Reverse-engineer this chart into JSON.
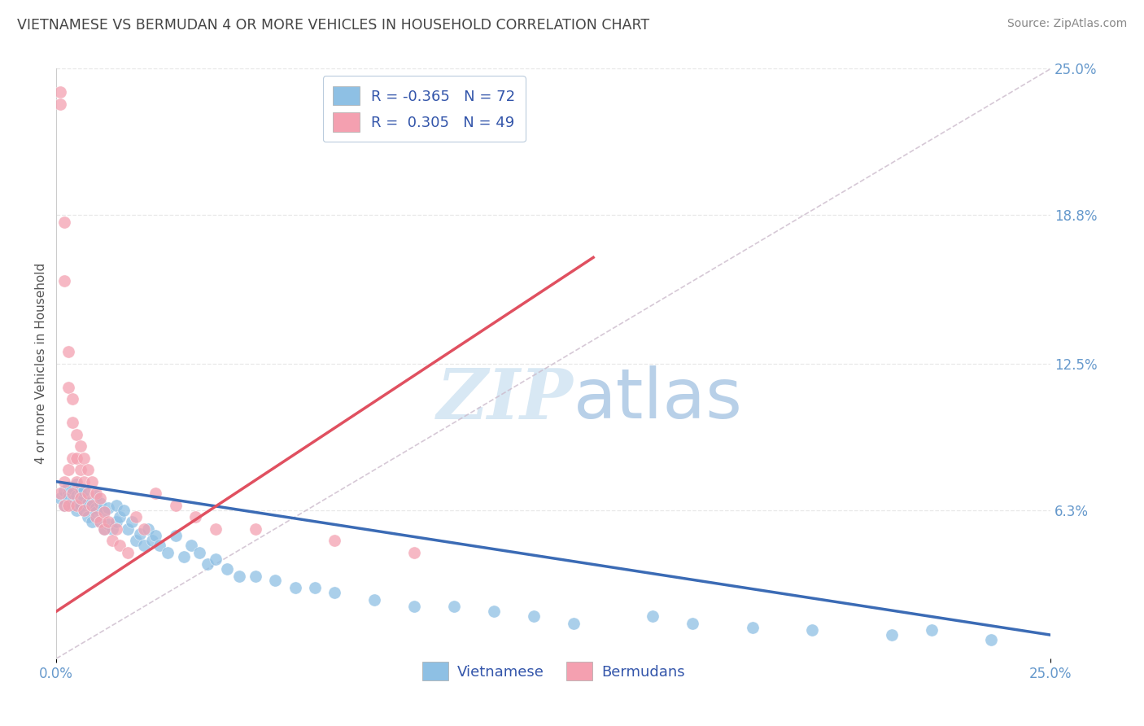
{
  "title": "VIETNAMESE VS BERMUDAN 4 OR MORE VEHICLES IN HOUSEHOLD CORRELATION CHART",
  "source": "Source: ZipAtlas.com",
  "ylabel": "4 or more Vehicles in Household",
  "xlim": [
    0.0,
    0.25
  ],
  "ylim": [
    0.0,
    0.25
  ],
  "xtick_positions": [
    0.0,
    0.25
  ],
  "xtick_labels": [
    "0.0%",
    "25.0%"
  ],
  "ytick_right_labels": [
    "6.3%",
    "12.5%",
    "18.8%",
    "25.0%"
  ],
  "ytick_right_values": [
    0.063,
    0.125,
    0.188,
    0.25
  ],
  "legend_R1": "-0.365",
  "legend_N1": "72",
  "legend_R2": "0.305",
  "legend_N2": "49",
  "blue_color": "#8EC0E4",
  "pink_color": "#F4A0B0",
  "blue_line_color": "#3B6BB5",
  "pink_line_color": "#E05060",
  "gray_line_color": "#CCBBCC",
  "title_color": "#444444",
  "source_color": "#888888",
  "axis_label_color": "#555555",
  "tick_color": "#6699CC",
  "grid_color": "#E8E8E8",
  "watermark_color": "#D8E8F4",
  "blue_scatter_x": [
    0.001,
    0.002,
    0.002,
    0.003,
    0.003,
    0.003,
    0.004,
    0.004,
    0.004,
    0.005,
    0.005,
    0.005,
    0.006,
    0.006,
    0.006,
    0.007,
    0.007,
    0.007,
    0.008,
    0.008,
    0.009,
    0.009,
    0.01,
    0.01,
    0.01,
    0.011,
    0.011,
    0.012,
    0.012,
    0.013,
    0.013,
    0.014,
    0.015,
    0.015,
    0.016,
    0.017,
    0.018,
    0.019,
    0.02,
    0.021,
    0.022,
    0.023,
    0.024,
    0.025,
    0.026,
    0.028,
    0.03,
    0.032,
    0.034,
    0.036,
    0.038,
    0.04,
    0.043,
    0.046,
    0.05,
    0.055,
    0.06,
    0.065,
    0.07,
    0.08,
    0.09,
    0.1,
    0.11,
    0.12,
    0.13,
    0.15,
    0.16,
    0.175,
    0.19,
    0.21,
    0.22,
    0.235
  ],
  "blue_scatter_y": [
    0.068,
    0.071,
    0.065,
    0.07,
    0.068,
    0.073,
    0.067,
    0.072,
    0.065,
    0.069,
    0.074,
    0.063,
    0.07,
    0.065,
    0.072,
    0.068,
    0.063,
    0.071,
    0.066,
    0.06,
    0.065,
    0.058,
    0.064,
    0.062,
    0.069,
    0.058,
    0.066,
    0.055,
    0.062,
    0.057,
    0.064,
    0.055,
    0.058,
    0.065,
    0.06,
    0.063,
    0.055,
    0.058,
    0.05,
    0.053,
    0.048,
    0.055,
    0.05,
    0.052,
    0.048,
    0.045,
    0.052,
    0.043,
    0.048,
    0.045,
    0.04,
    0.042,
    0.038,
    0.035,
    0.035,
    0.033,
    0.03,
    0.03,
    0.028,
    0.025,
    0.022,
    0.022,
    0.02,
    0.018,
    0.015,
    0.018,
    0.015,
    0.013,
    0.012,
    0.01,
    0.012,
    0.008
  ],
  "pink_scatter_x": [
    0.001,
    0.001,
    0.001,
    0.002,
    0.002,
    0.002,
    0.002,
    0.003,
    0.003,
    0.003,
    0.003,
    0.004,
    0.004,
    0.004,
    0.004,
    0.005,
    0.005,
    0.005,
    0.005,
    0.006,
    0.006,
    0.006,
    0.007,
    0.007,
    0.007,
    0.008,
    0.008,
    0.009,
    0.009,
    0.01,
    0.01,
    0.011,
    0.011,
    0.012,
    0.012,
    0.013,
    0.014,
    0.015,
    0.016,
    0.018,
    0.02,
    0.022,
    0.025,
    0.03,
    0.035,
    0.04,
    0.05,
    0.07,
    0.09
  ],
  "pink_scatter_y": [
    0.24,
    0.235,
    0.07,
    0.185,
    0.16,
    0.075,
    0.065,
    0.13,
    0.115,
    0.08,
    0.065,
    0.11,
    0.1,
    0.085,
    0.07,
    0.095,
    0.085,
    0.075,
    0.065,
    0.09,
    0.08,
    0.068,
    0.085,
    0.075,
    0.063,
    0.08,
    0.07,
    0.075,
    0.065,
    0.07,
    0.06,
    0.068,
    0.058,
    0.062,
    0.055,
    0.058,
    0.05,
    0.055,
    0.048,
    0.045,
    0.06,
    0.055,
    0.07,
    0.065,
    0.06,
    0.055,
    0.055,
    0.05,
    0.045
  ],
  "blue_line_x": [
    0.0,
    0.25
  ],
  "blue_line_y": [
    0.075,
    0.01
  ],
  "pink_line_x": [
    0.0,
    0.135
  ],
  "pink_line_y": [
    0.02,
    0.17
  ],
  "gray_line_x": [
    0.0,
    0.25
  ],
  "gray_line_y": [
    0.0,
    0.25
  ],
  "figsize": [
    14.06,
    8.92
  ],
  "dpi": 100
}
